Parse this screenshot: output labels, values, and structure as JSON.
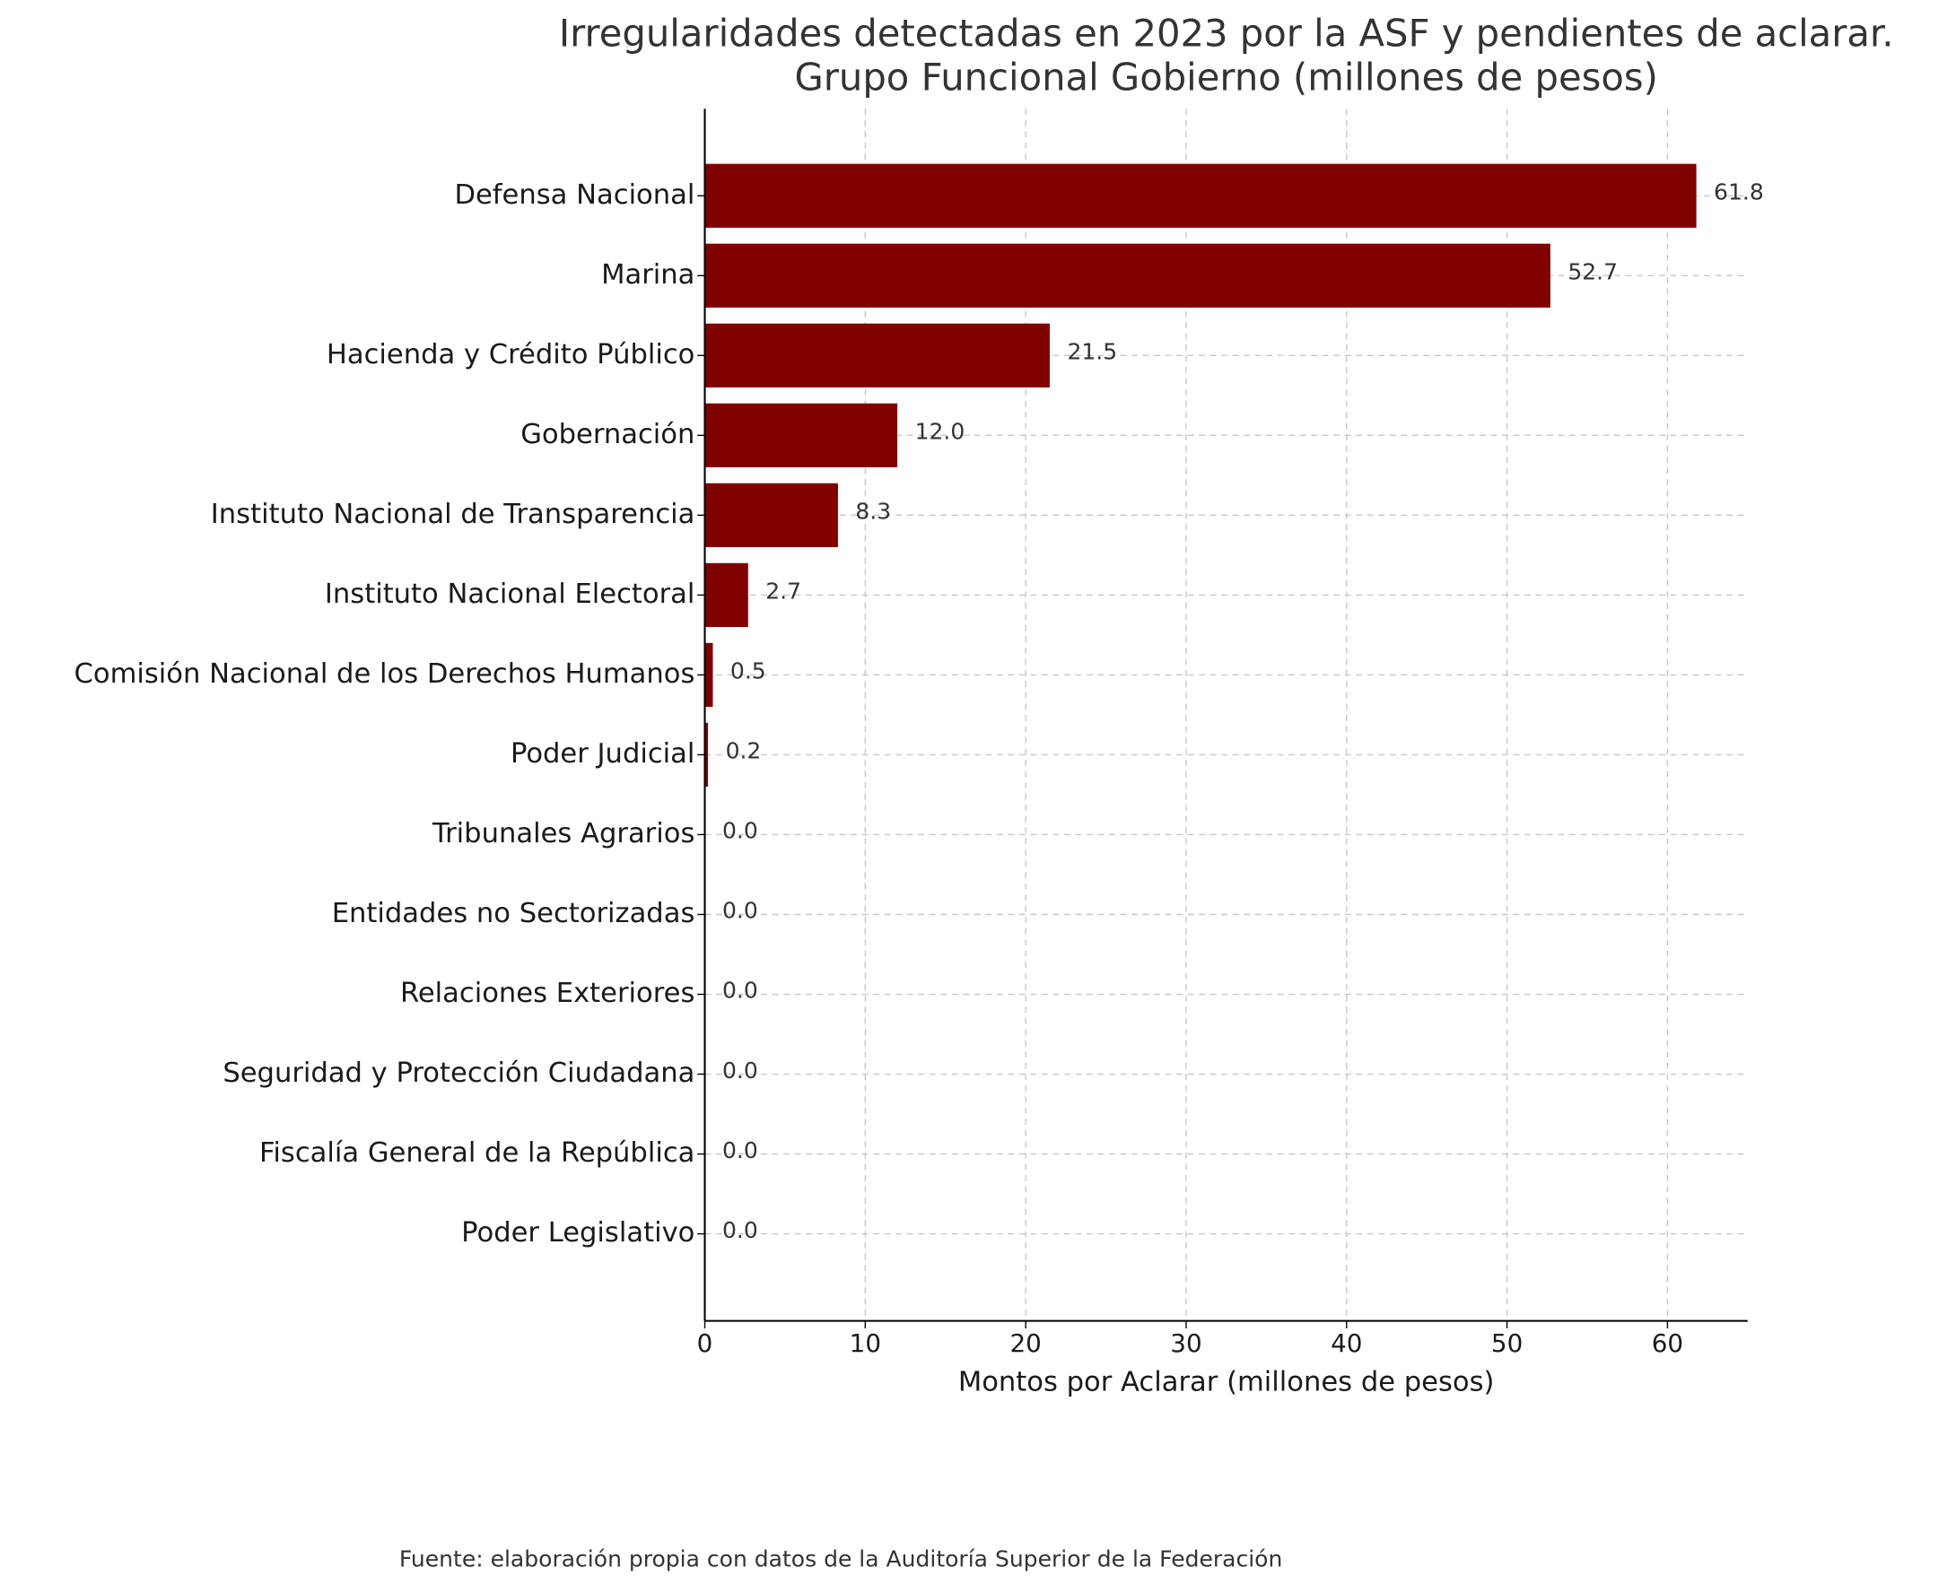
{
  "chart_data": {
    "type": "barh",
    "title": [
      "Irregularidades detectadas en 2023 por la ASF y pendientes de aclarar.",
      "Grupo Funcional Gobierno (millones de pesos)"
    ],
    "categories": [
      "Defensa Nacional",
      "Marina",
      "Hacienda y Crédito Público",
      "Gobernación",
      "Instituto Nacional de Transparencia",
      "Instituto Nacional Electoral",
      "Comisión Nacional de los Derechos Humanos",
      "Poder Judicial",
      "Tribunales Agrarios",
      "Entidades no Sectorizadas",
      "Relaciones Exteriores",
      "Seguridad y Protección Ciudadana",
      "Fiscalía General de la República",
      "Poder Legislativo"
    ],
    "values": [
      61.8,
      52.7,
      21.5,
      12.0,
      8.3,
      2.7,
      0.5,
      0.2,
      0,
      0,
      0,
      0,
      0,
      0
    ],
    "value_labels": [
      "61.8",
      "52.7",
      "21.5",
      "12.0",
      "8.3",
      "2.7",
      "0.5",
      "0.2",
      "0.0",
      "0.0",
      "0.0",
      "0.0",
      "0.0",
      "0.0"
    ],
    "color": "#800000",
    "xlabel": "Montos por Aclarar (millones de pesos)",
    "xlim": [
      0,
      65
    ],
    "xticks": [
      0,
      10,
      20,
      30,
      40,
      50,
      60
    ],
    "grid": true,
    "source": "Fuente: elaboración propia con datos de la Auditoría Superior de la Federación"
  }
}
